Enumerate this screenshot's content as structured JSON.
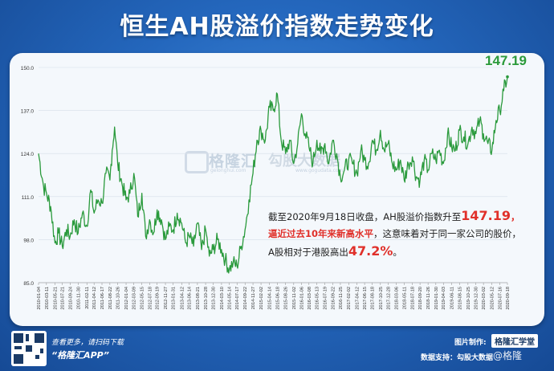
{
  "title": "恒生AH股溢价指数走势变化",
  "peak_label": "147.19",
  "watermark": {
    "brand": "格隆汇",
    "brand_sub": "gelonghui.com",
    "partner": "勾股大数据",
    "partner_sub": "www.gogudata.com"
  },
  "note": {
    "line1_prefix": "截至2020年9月18日收盘，AH股溢价指数升至",
    "line1_value": "147.19",
    "line1_suffix": "，",
    "line2_red": "逼近过去10年来新高水平",
    "line2_rest": "，这意味着对于同一家公司的股价，",
    "line3_prefix": "A股相对于港股高出",
    "line3_value": "47.2%",
    "line3_suffix": "。"
  },
  "footer": {
    "scan_text": "查看更多，请扫码下载",
    "app_name": "“格隆汇APP”",
    "credit_label": "图片制作:",
    "credit_brand": "格隆汇学堂",
    "data_label": "数据支持：勾股大数据",
    "weibo": "@格隆"
  },
  "colors": {
    "line": "#2a9a3c",
    "accent_red": "#e0302a",
    "background": "#1f5fb0"
  },
  "chart_data": {
    "type": "line",
    "title": "恒生AH股溢价指数走势变化",
    "xlabel": "",
    "ylabel": "",
    "ylim": [
      85.0,
      150.0
    ],
    "y_ticks": [
      "85.0",
      "98.0",
      "111.0",
      "124.0",
      "137.0",
      "150.0"
    ],
    "x_ticks": [
      "2010-01-04",
      "2010-03-11",
      "2010-05-21",
      "2010-07-21",
      "2010-09-24",
      "2010-11-30",
      "2011-02-11",
      "2011-04-12",
      "2011-06-17",
      "2011-08-22",
      "2011-10-26",
      "2012-01-04",
      "2012-03-09",
      "2012-05-15",
      "2012-07-18",
      "2012-09-19",
      "2012-11-27",
      "2013-01-31",
      "2013-04-12",
      "2013-06-14",
      "2013-08-21",
      "2013-10-28",
      "2013-12-30",
      "2014-03-10",
      "2014-05-14",
      "2014-07-17",
      "2014-09-22",
      "2014-11-27",
      "2015-02-02",
      "2015-04-14",
      "2015-06-18",
      "2015-08-26",
      "2015-11-02",
      "2016-01-06",
      "2016-03-08",
      "2016-05-13",
      "2016-07-19",
      "2016-09-22",
      "2016-11-25",
      "2017-02-02",
      "2017-04-12",
      "2017-06-15",
      "2017-08-18",
      "2017-10-25",
      "2017-12-28",
      "2018-03-06",
      "2018-05-11",
      "2018-07-18",
      "2018-09-20",
      "2018-11-26",
      "2019-01-30",
      "2019-04-03",
      "2019-06-11",
      "2019-08-15",
      "2019-10-25",
      "2019-12-30",
      "2020-03-02",
      "2020-05-12",
      "2020-07-16",
      "2020-09-18"
    ],
    "series": [
      {
        "name": "",
        "x": [
          "2010-01-04",
          "2010-02-15",
          "2010-03-11",
          "2010-04-15",
          "2010-05-21",
          "2010-06-20",
          "2010-07-21",
          "2010-08-25",
          "2010-09-24",
          "2010-10-28",
          "2010-11-30",
          "2011-01-05",
          "2011-02-11",
          "2011-03-15",
          "2011-04-12",
          "2011-05-15",
          "2011-06-17",
          "2011-07-20",
          "2011-08-22",
          "2011-09-10",
          "2011-09-30",
          "2011-10-26",
          "2011-11-30",
          "2012-01-04",
          "2012-02-05",
          "2012-03-09",
          "2012-04-10",
          "2012-05-15",
          "2012-06-15",
          "2012-07-18",
          "2012-08-20",
          "2012-09-19",
          "2012-10-25",
          "2012-11-27",
          "2012-12-30",
          "2013-01-31",
          "2013-03-05",
          "2013-04-12",
          "2013-05-15",
          "2013-06-14",
          "2013-07-20",
          "2013-08-21",
          "2013-09-25",
          "2013-10-28",
          "2013-11-28",
          "2013-12-30",
          "2014-02-05",
          "2014-03-10",
          "2014-04-10",
          "2014-05-14",
          "2014-06-15",
          "2014-07-17",
          "2014-08-20",
          "2014-09-22",
          "2014-10-25",
          "2014-11-27",
          "2014-12-30",
          "2015-02-02",
          "2015-03-10",
          "2015-04-14",
          "2015-05-15",
          "2015-06-18",
          "2015-07-20",
          "2015-08-26",
          "2015-09-28",
          "2015-11-02",
          "2015-12-05",
          "2016-01-06",
          "2016-02-05",
          "2016-03-08",
          "2016-04-10",
          "2016-05-13",
          "2016-06-15",
          "2016-07-19",
          "2016-08-20",
          "2016-09-22",
          "2016-10-25",
          "2016-11-25",
          "2016-12-28",
          "2017-02-02",
          "2017-03-05",
          "2017-04-12",
          "2017-05-15",
          "2017-06-15",
          "2017-07-18",
          "2017-08-18",
          "2017-09-20",
          "2017-10-25",
          "2017-11-25",
          "2017-12-28",
          "2018-02-01",
          "2018-03-06",
          "2018-04-10",
          "2018-05-11",
          "2018-06-15",
          "2018-07-18",
          "2018-08-20",
          "2018-09-20",
          "2018-10-25",
          "2018-11-26",
          "2018-12-28",
          "2019-01-30",
          "2019-03-01",
          "2019-04-03",
          "2019-05-08",
          "2019-06-11",
          "2019-07-12",
          "2019-08-15",
          "2019-09-20",
          "2019-10-25",
          "2019-11-28",
          "2019-12-30",
          "2020-01-31",
          "2020-03-02",
          "2020-04-08",
          "2020-05-12",
          "2020-06-15",
          "2020-07-16",
          "2020-08-18",
          "2020-09-18"
        ],
        "values": [
          124,
          114,
          112,
          108,
          97,
          100,
          96,
          101,
          99,
          104,
          100,
          106,
          102,
          113,
          106,
          110,
          109,
          118,
          116,
          125,
          132,
          121,
          115,
          110,
          112,
          118,
          105,
          112,
          99,
          104,
          100,
          107,
          104,
          98,
          102,
          101,
          106,
          103,
          97,
          99,
          96,
          103,
          95,
          101,
          93,
          95,
          98,
          95,
          92,
          89,
          91,
          90,
          96,
          101,
          110,
          118,
          128,
          131,
          128,
          138,
          137,
          142,
          128,
          124,
          128,
          121,
          127,
          136,
          130,
          126,
          121,
          128,
          124,
          127,
          121,
          128,
          124,
          117,
          119,
          122,
          121,
          118,
          125,
          122,
          121,
          128,
          125,
          131,
          125,
          127,
          121,
          119,
          122,
          116,
          121,
          123,
          117,
          116,
          122,
          119,
          124,
          122,
          125,
          121,
          130,
          126,
          125,
          131,
          129,
          127,
          132,
          130,
          134,
          130,
          127,
          125,
          134,
          137,
          143,
          147.19
        ]
      }
    ]
  }
}
